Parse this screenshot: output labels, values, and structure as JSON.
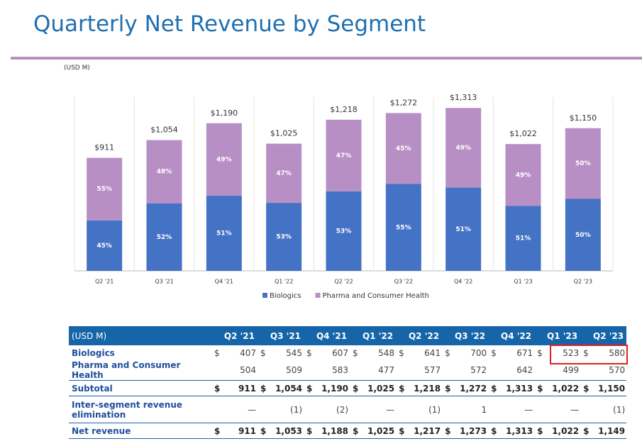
{
  "title": "Quarterly Net Revenue by Segment",
  "unit_note": "(USD M)",
  "chart_data": {
    "type": "bar",
    "stacked": true,
    "categories": [
      "Q2 '21",
      "Q3 '21",
      "Q4 '21",
      "Q1 '22",
      "Q2 '22",
      "Q3 '22",
      "Q4 '22",
      "Q1 '23",
      "Q2 '23"
    ],
    "series": [
      {
        "name": "Biologics",
        "color": "#4472c4",
        "values": [
          407,
          545,
          607,
          548,
          641,
          700,
          671,
          523,
          580
        ],
        "share_labels": [
          "45%",
          "52%",
          "51%",
          "53%",
          "53%",
          "55%",
          "51%",
          "51%",
          "50%"
        ]
      },
      {
        "name": "Pharma and Consumer Health",
        "color": "#b88fc5",
        "values": [
          504,
          509,
          583,
          477,
          577,
          572,
          642,
          499,
          570
        ],
        "share_labels": [
          "55%",
          "48%",
          "49%",
          "47%",
          "47%",
          "45%",
          "49%",
          "49%",
          "50%"
        ]
      }
    ],
    "totals": [
      911,
      1054,
      1190,
      1025,
      1218,
      1272,
      1313,
      1022,
      1150
    ],
    "total_labels": [
      "$911",
      "$1,054",
      "$1,190",
      "$1,025",
      "$1,218",
      "$1,272",
      "$1,313",
      "$1,022",
      "$1,150"
    ],
    "ylim": [
      0,
      1400
    ]
  },
  "table": {
    "header": [
      "(USD M)",
      "Q2 '21",
      "Q3 '21",
      "Q4 '21",
      "Q1 '22",
      "Q2 '22",
      "Q3 '22",
      "Q4 '22",
      "Q1 '23",
      "Q2 '23"
    ],
    "currency_symbol": "$",
    "rows": [
      {
        "label": "Biologics",
        "currency": true,
        "bold": false,
        "cells": [
          "407",
          "545",
          "607",
          "548",
          "641",
          "700",
          "671",
          "523",
          "580"
        ]
      },
      {
        "label": "Pharma and Consumer Health",
        "currency": false,
        "bold": false,
        "cells": [
          "504",
          "509",
          "583",
          "477",
          "577",
          "572",
          "642",
          "499",
          "570"
        ]
      },
      {
        "label": "Subtotal",
        "currency": true,
        "bold": true,
        "cells": [
          "911",
          "1,054",
          "1,190",
          "1,025",
          "1,218",
          "1,272",
          "1,313",
          "1,022",
          "1,150"
        ]
      },
      {
        "label": "Inter-segment revenue elimination",
        "currency": false,
        "bold": false,
        "cells": [
          "—",
          "(1)",
          "(2)",
          "—",
          "(1)",
          "1",
          "—",
          "—",
          "(1)"
        ]
      },
      {
        "label": "Net revenue",
        "currency": true,
        "bold": true,
        "cells": [
          "911",
          "1,053",
          "1,188",
          "1,025",
          "1,217",
          "1,273",
          "1,313",
          "1,022",
          "1,149"
        ]
      }
    ]
  }
}
